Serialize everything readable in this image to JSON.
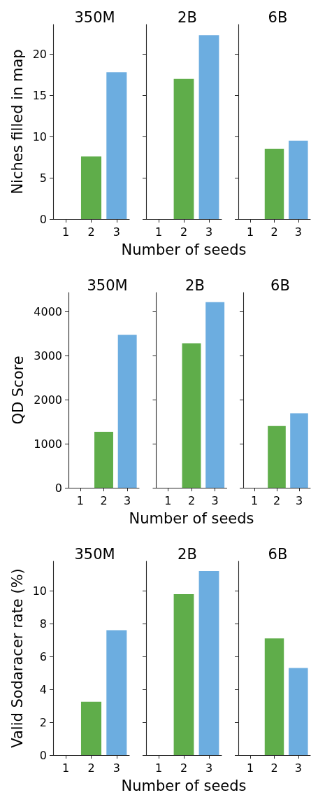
{
  "chart_data": [
    {
      "type": "bar",
      "title": "350M",
      "ylabel": "Niches filled in map",
      "categories": [
        "1",
        "2",
        "3"
      ],
      "values": [
        null,
        7.6,
        17.8
      ],
      "colors": [
        null,
        "#5fad4a",
        "#6cade0"
      ],
      "ylim": [
        0,
        23.6
      ],
      "yticks": [
        0,
        5,
        10,
        15,
        20
      ]
    },
    {
      "type": "bar",
      "title": "2B",
      "xlabel": "Number of seeds",
      "categories": [
        "1",
        "2",
        "3"
      ],
      "values": [
        null,
        17,
        22.3
      ],
      "colors": [
        null,
        "#5fad4a",
        "#6cade0"
      ],
      "ylim": [
        0,
        23.6
      ],
      "yticks": [
        0,
        5,
        10,
        15,
        20
      ],
      "tick_labels": "x"
    },
    {
      "type": "bar",
      "title": "6B",
      "categories": [
        "1",
        "2",
        "3"
      ],
      "values": [
        null,
        8.5,
        9.5
      ],
      "colors": [
        null,
        "#5fad4a",
        "#6cade0"
      ],
      "ylim": [
        0,
        23.6
      ],
      "yticks": [
        0,
        5,
        10,
        15,
        20
      ],
      "tick_labels": "x"
    },
    {
      "type": "bar",
      "title": "350M",
      "ylabel": "QD Score",
      "categories": [
        "1",
        "2",
        "3"
      ],
      "values": [
        null,
        1270,
        3470
      ],
      "colors": [
        null,
        "#5fad4a",
        "#6cade0"
      ],
      "ylim": [
        0,
        4430
      ],
      "yticks": [
        0,
        1000,
        2000,
        3000,
        4000
      ]
    },
    {
      "type": "bar",
      "title": "2B",
      "xlabel": "Number of seeds",
      "categories": [
        "1",
        "2",
        "3"
      ],
      "values": [
        null,
        3280,
        4210
      ],
      "colors": [
        null,
        "#5fad4a",
        "#6cade0"
      ],
      "ylim": [
        0,
        4430
      ],
      "yticks": [
        0,
        1000,
        2000,
        3000,
        4000
      ],
      "tick_labels": "x"
    },
    {
      "type": "bar",
      "title": "6B",
      "categories": [
        "1",
        "2",
        "3"
      ],
      "values": [
        null,
        1400,
        1690
      ],
      "colors": [
        null,
        "#5fad4a",
        "#6cade0"
      ],
      "ylim": [
        0,
        4430
      ],
      "yticks": [
        0,
        1000,
        2000,
        3000,
        4000
      ],
      "tick_labels": "x"
    },
    {
      "type": "bar",
      "title": "350M",
      "ylabel": "Valid Sodaracer rate (%)",
      "categories": [
        "1",
        "2",
        "3"
      ],
      "values": [
        null,
        3.25,
        7.6
      ],
      "colors": [
        null,
        "#5fad4a",
        "#6cade0"
      ],
      "ylim": [
        0,
        11.8
      ],
      "yticks": [
        0,
        2,
        4,
        6,
        8,
        10
      ]
    },
    {
      "type": "bar",
      "title": "2B",
      "xlabel": "Number of seeds",
      "categories": [
        "1",
        "2",
        "3"
      ],
      "values": [
        null,
        9.8,
        11.2
      ],
      "colors": [
        null,
        "#5fad4a",
        "#6cade0"
      ],
      "ylim": [
        0,
        11.8
      ],
      "yticks": [
        0,
        2,
        4,
        6,
        8,
        10
      ],
      "tick_labels": "x"
    },
    {
      "type": "bar",
      "title": "6B",
      "categories": [
        "1",
        "2",
        "3"
      ],
      "values": [
        null,
        7.1,
        5.3
      ],
      "colors": [
        null,
        "#5fad4a",
        "#6cade0"
      ],
      "ylim": [
        0,
        11.8
      ],
      "yticks": [
        0,
        2,
        4,
        6,
        8,
        10
      ],
      "tick_labels": "x"
    }
  ]
}
